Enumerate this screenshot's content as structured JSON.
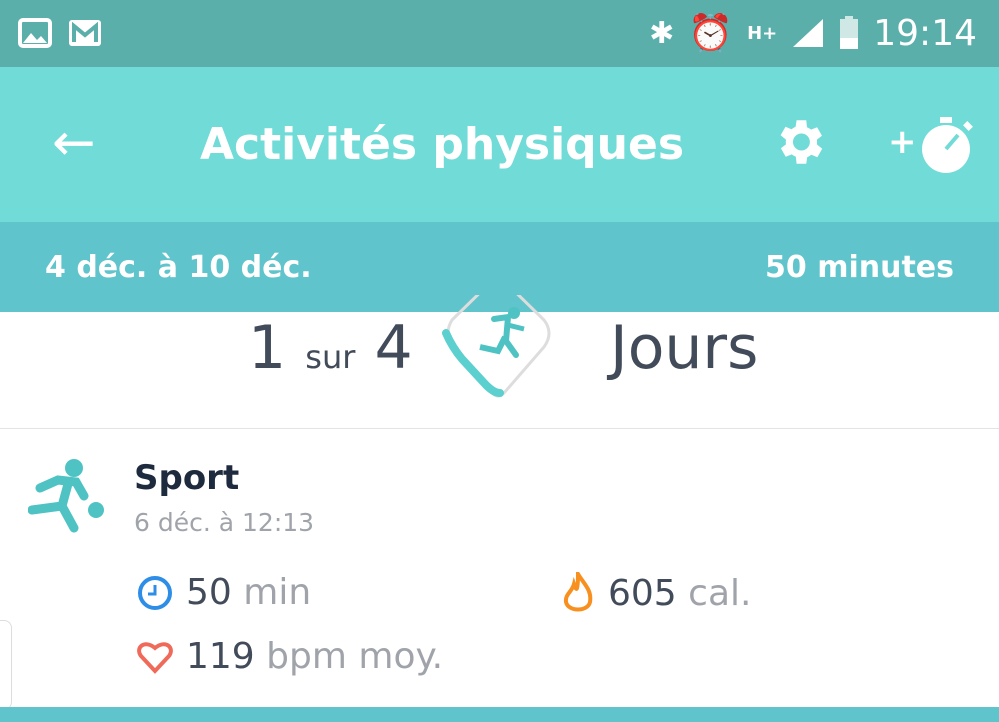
{
  "status_bar": {
    "time": "19:14",
    "network": "H+",
    "icons": [
      "image-icon",
      "gmail-icon",
      "bluetooth-icon",
      "alarm-icon",
      "signal-icon",
      "battery-icon"
    ]
  },
  "app_bar": {
    "title": "Activités physiques",
    "back_icon": "arrow-left-icon",
    "settings_icon": "gear-icon",
    "add_icon": "add-stopwatch-icon"
  },
  "summary": {
    "date_range": "4 déc. à 10 déc.",
    "total": "50 minutes"
  },
  "goal": {
    "done": "1",
    "sep": "sur",
    "target": "4",
    "unit": "Jours",
    "progress": 0.25,
    "accent": "#5ccfcf"
  },
  "activity": {
    "name": "Sport",
    "date": "6 déc. à 12:13",
    "duration": {
      "value": "50",
      "unit": "min"
    },
    "calories": {
      "value": "605",
      "unit": "cal."
    },
    "heart_rate": {
      "value": "119",
      "unit": "bpm moy."
    }
  }
}
